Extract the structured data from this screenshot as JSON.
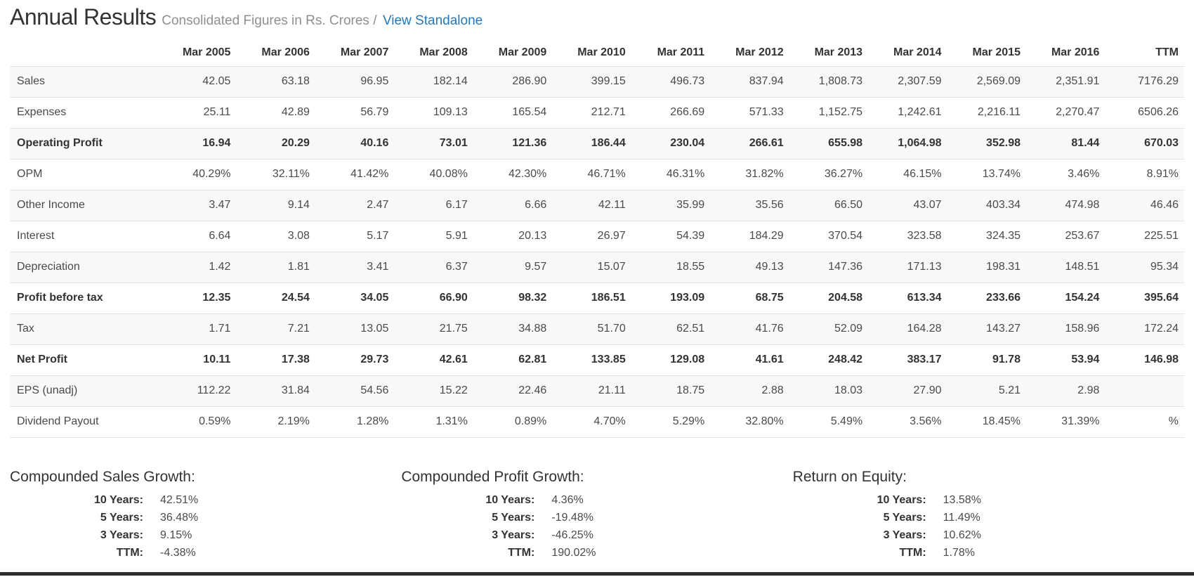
{
  "header": {
    "title": "Annual Results",
    "subtitle": "Consolidated Figures in Rs. Crores /",
    "link_label": "View Standalone"
  },
  "table": {
    "columns": [
      "Mar 2005",
      "Mar 2006",
      "Mar 2007",
      "Mar 2008",
      "Mar 2009",
      "Mar 2010",
      "Mar 2011",
      "Mar 2012",
      "Mar 2013",
      "Mar 2014",
      "Mar 2015",
      "Mar 2016",
      "TTM"
    ],
    "rows": [
      {
        "label": "Sales",
        "bold": false,
        "values": [
          "42.05",
          "63.18",
          "96.95",
          "182.14",
          "286.90",
          "399.15",
          "496.73",
          "837.94",
          "1,808.73",
          "2,307.59",
          "2,569.09",
          "2,351.91",
          "7176.29"
        ]
      },
      {
        "label": "Expenses",
        "bold": false,
        "values": [
          "25.11",
          "42.89",
          "56.79",
          "109.13",
          "165.54",
          "212.71",
          "266.69",
          "571.33",
          "1,152.75",
          "1,242.61",
          "2,216.11",
          "2,270.47",
          "6506.26"
        ]
      },
      {
        "label": "Operating Profit",
        "bold": true,
        "values": [
          "16.94",
          "20.29",
          "40.16",
          "73.01",
          "121.36",
          "186.44",
          "230.04",
          "266.61",
          "655.98",
          "1,064.98",
          "352.98",
          "81.44",
          "670.03"
        ]
      },
      {
        "label": "OPM",
        "bold": false,
        "values": [
          "40.29%",
          "32.11%",
          "41.42%",
          "40.08%",
          "42.30%",
          "46.71%",
          "46.31%",
          "31.82%",
          "36.27%",
          "46.15%",
          "13.74%",
          "3.46%",
          "8.91%"
        ]
      },
      {
        "label": "Other Income",
        "bold": false,
        "values": [
          "3.47",
          "9.14",
          "2.47",
          "6.17",
          "6.66",
          "42.11",
          "35.99",
          "35.56",
          "66.50",
          "43.07",
          "403.34",
          "474.98",
          "46.46"
        ]
      },
      {
        "label": "Interest",
        "bold": false,
        "values": [
          "6.64",
          "3.08",
          "5.17",
          "5.91",
          "20.13",
          "26.97",
          "54.39",
          "184.29",
          "370.54",
          "323.58",
          "324.35",
          "253.67",
          "225.51"
        ]
      },
      {
        "label": "Depreciation",
        "bold": false,
        "values": [
          "1.42",
          "1.81",
          "3.41",
          "6.37",
          "9.57",
          "15.07",
          "18.55",
          "49.13",
          "147.36",
          "171.13",
          "198.31",
          "148.51",
          "95.34"
        ]
      },
      {
        "label": "Profit before tax",
        "bold": true,
        "values": [
          "12.35",
          "24.54",
          "34.05",
          "66.90",
          "98.32",
          "186.51",
          "193.09",
          "68.75",
          "204.58",
          "613.34",
          "233.66",
          "154.24",
          "395.64"
        ]
      },
      {
        "label": "Tax",
        "bold": false,
        "values": [
          "1.71",
          "7.21",
          "13.05",
          "21.75",
          "34.88",
          "51.70",
          "62.51",
          "41.76",
          "52.09",
          "164.28",
          "143.27",
          "158.96",
          "172.24"
        ]
      },
      {
        "label": "Net Profit",
        "bold": true,
        "values": [
          "10.11",
          "17.38",
          "29.73",
          "42.61",
          "62.81",
          "133.85",
          "129.08",
          "41.61",
          "248.42",
          "383.17",
          "91.78",
          "53.94",
          "146.98"
        ]
      },
      {
        "label": "EPS (unadj)",
        "bold": false,
        "values": [
          "112.22",
          "31.84",
          "54.56",
          "15.22",
          "22.46",
          "21.11",
          "18.75",
          "2.88",
          "18.03",
          "27.90",
          "5.21",
          "2.98",
          ""
        ]
      },
      {
        "label": "Dividend Payout",
        "bold": false,
        "values": [
          "0.59%",
          "2.19%",
          "1.28%",
          "1.31%",
          "0.89%",
          "4.70%",
          "5.29%",
          "32.80%",
          "5.49%",
          "3.56%",
          "18.45%",
          "31.39%",
          "%"
        ]
      }
    ]
  },
  "summary": [
    {
      "title": "Compounded Sales Growth:",
      "items": [
        {
          "label": "10 Years:",
          "value": "42.51%"
        },
        {
          "label": "5 Years:",
          "value": "36.48%"
        },
        {
          "label": "3 Years:",
          "value": "9.15%"
        },
        {
          "label": "TTM:",
          "value": "-4.38%"
        }
      ]
    },
    {
      "title": "Compounded Profit Growth:",
      "items": [
        {
          "label": "10 Years:",
          "value": "4.36%"
        },
        {
          "label": "5 Years:",
          "value": "-19.48%"
        },
        {
          "label": "3 Years:",
          "value": "-46.25%"
        },
        {
          "label": "TTM:",
          "value": "190.02%"
        }
      ]
    },
    {
      "title": "Return on Equity:",
      "items": [
        {
          "label": "10 Years:",
          "value": "13.58%"
        },
        {
          "label": "5 Years:",
          "value": "11.49%"
        },
        {
          "label": "3 Years:",
          "value": "10.62%"
        },
        {
          "label": "TTM:",
          "value": "1.78%"
        }
      ]
    }
  ],
  "colors": {
    "link": "#1f78c1",
    "stripe": "#f8f8f8",
    "rule": "#e2e2e2",
    "text": "#4a4a4a",
    "heading": "#333333",
    "subtitle": "#8f8f8f",
    "bottom_bar": "#2e2e2e"
  }
}
